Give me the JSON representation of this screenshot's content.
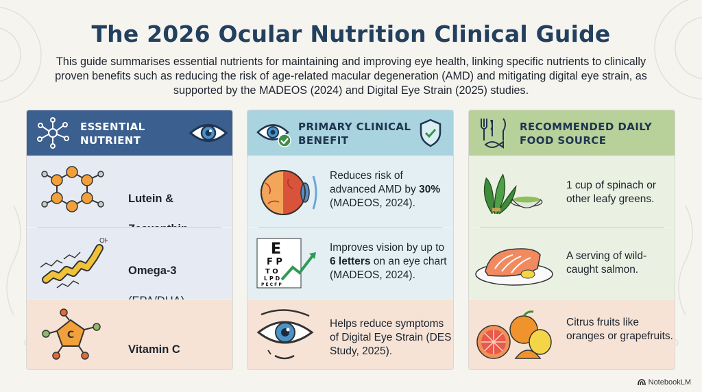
{
  "page": {
    "title": "The 2026 Ocular Nutrition Clinical Guide",
    "intro": "This guide summarises essential nutrients for maintaining and improving eye health, linking specific nutrients to clinically proven benefits such as reducing the risk of age-related macular degeneration (AMD) and mitigating digital eye strain, as supported by the MADEOS (2024) and Digital Eye Strain (2025) studies."
  },
  "columns": {
    "nutrient_header": "ESSENTIAL\nNUTRIENT",
    "benefit_header": "PRIMARY CLINICAL\nBENEFIT",
    "food_header": "RECOMMENDED DAILY\nFOOD SOURCE"
  },
  "rows": [
    {
      "nutrient_line1": "Lutein &",
      "nutrient_line2": "Zeaxanthin",
      "benefit_pre": "Reduces risk of advanced AMD by ",
      "benefit_bold": "30%",
      "benefit_post": " (MADEOS, 2024).",
      "food": "1 cup of spinach or other leafy greens."
    },
    {
      "nutrient_line1": "Omega-3",
      "nutrient_line2": "(EPA/DHA)",
      "benefit_pre": "Improves vision by up to ",
      "benefit_bold": "6 letters",
      "benefit_post": " on an eye chart (MADEOS, 2024).",
      "food": "A serving of wild-caught salmon."
    },
    {
      "nutrient_line1": "Vitamin C",
      "nutrient_line2": "",
      "benefit_pre": "Helps reduce symptoms of Digital Eye Strain (DES Study, 2025).",
      "benefit_bold": "",
      "benefit_post": "",
      "food": "Citrus fruits like oranges or grapefruits."
    }
  ],
  "icon_labels": {
    "omega_oh": "OH",
    "vitc_c": "C",
    "chart_letters": [
      "E",
      "F P",
      "T O",
      "L P D",
      "P E C F P"
    ]
  },
  "brand": "NotebookLM",
  "icons": [
    "molecule-icon",
    "eye-icon",
    "eye-check-icon",
    "shield-check-icon",
    "utensils-fish-icon",
    "eyeball-anatomy-icon",
    "eye-chart-icon",
    "relaxed-eye-icon",
    "spinach-icon",
    "salmon-icon",
    "citrus-icon",
    "notebooklm-logo-icon"
  ],
  "colors": {
    "title": "#23405f",
    "nutrient_header_bg": "#3b5f8e",
    "benefit_header_bg": "#a9d3df",
    "food_header_bg": "#b8d09a",
    "accent_orange": "#f2a03a"
  }
}
